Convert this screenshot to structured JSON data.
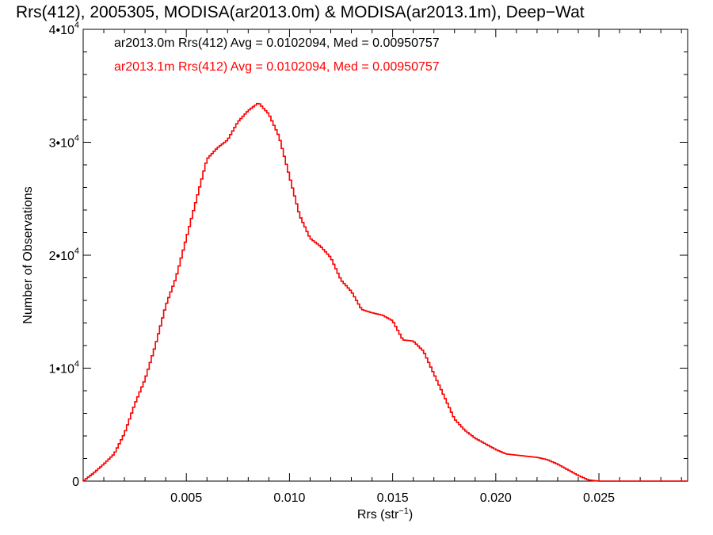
{
  "chart_data": {
    "type": "histogram",
    "title": "Rrs(412), 2005305, MODISA(ar2013.0m) & MODISA(ar2013.1m), Deep−Wat",
    "xlabel": "Rrs (str",
    "xlabel_sup": "−1",
    "xlabel_close": ")",
    "ylabel": "Number of Observations",
    "xlim": [
      0.0,
      0.0293
    ],
    "ylim": [
      0,
      40000
    ],
    "x_ticks": [
      0.005,
      0.01,
      0.015,
      0.02,
      0.025
    ],
    "x_tick_labels": [
      "0.005",
      "0.010",
      "0.015",
      "0.020",
      "0.025"
    ],
    "y_ticks": [
      0,
      10000,
      20000,
      30000,
      40000
    ],
    "y_tick_labels": [
      {
        "mant": "0",
        "sup": ""
      },
      {
        "mant": "1•10",
        "sup": "4"
      },
      {
        "mant": "2•10",
        "sup": "4"
      },
      {
        "mant": "3•10",
        "sup": "4"
      },
      {
        "mant": "4•10",
        "sup": "4"
      }
    ],
    "grid": false,
    "legend_position": "top-left",
    "annotations": [
      {
        "text": "ar2013.0m Rrs(412) Avg = 0.0102094, Med = 0.00950757",
        "color": "#000000"
      },
      {
        "text": "ar2013.1m Rrs(412) Avg = 0.0102094, Med = 0.00950757",
        "color": "#ff0000"
      }
    ],
    "series": [
      {
        "name": "ar2013.0m",
        "color": "#000000",
        "points": [
          [
            0.0,
            0
          ],
          [
            0.0005,
            700
          ],
          [
            0.001,
            1500
          ],
          [
            0.0015,
            2400
          ],
          [
            0.002,
            4200
          ],
          [
            0.0025,
            6800
          ],
          [
            0.003,
            9000
          ],
          [
            0.0035,
            12000
          ],
          [
            0.004,
            15500
          ],
          [
            0.0045,
            18000
          ],
          [
            0.005,
            21500
          ],
          [
            0.0055,
            25000
          ],
          [
            0.006,
            28500
          ],
          [
            0.0065,
            29500
          ],
          [
            0.007,
            30200
          ],
          [
            0.0075,
            31800
          ],
          [
            0.008,
            32800
          ],
          [
            0.0085,
            33500
          ],
          [
            0.009,
            32500
          ],
          [
            0.0095,
            30500
          ],
          [
            0.01,
            27000
          ],
          [
            0.0105,
            23500
          ],
          [
            0.011,
            21500
          ],
          [
            0.0115,
            20800
          ],
          [
            0.012,
            19800
          ],
          [
            0.0125,
            17800
          ],
          [
            0.013,
            16800
          ],
          [
            0.0135,
            15200
          ],
          [
            0.014,
            14900
          ],
          [
            0.0145,
            14700
          ],
          [
            0.015,
            14200
          ],
          [
            0.0155,
            12500
          ],
          [
            0.016,
            12400
          ],
          [
            0.0165,
            11500
          ],
          [
            0.017,
            9500
          ],
          [
            0.0175,
            7500
          ],
          [
            0.018,
            5500
          ],
          [
            0.0185,
            4500
          ],
          [
            0.019,
            3800
          ],
          [
            0.0195,
            3300
          ],
          [
            0.02,
            2800
          ],
          [
            0.0205,
            2400
          ],
          [
            0.021,
            2300
          ],
          [
            0.0215,
            2200
          ],
          [
            0.022,
            2100
          ],
          [
            0.0225,
            1900
          ],
          [
            0.023,
            1500
          ],
          [
            0.0235,
            1000
          ],
          [
            0.024,
            500
          ],
          [
            0.0245,
            100
          ],
          [
            0.025,
            0
          ],
          [
            0.0293,
            0
          ]
        ]
      },
      {
        "name": "ar2013.1m",
        "color": "#ff0000",
        "points": [
          [
            0.0,
            0
          ],
          [
            0.0005,
            700
          ],
          [
            0.001,
            1500
          ],
          [
            0.0015,
            2400
          ],
          [
            0.002,
            4200
          ],
          [
            0.0025,
            6800
          ],
          [
            0.003,
            9000
          ],
          [
            0.0035,
            12000
          ],
          [
            0.004,
            15500
          ],
          [
            0.0045,
            18000
          ],
          [
            0.005,
            21500
          ],
          [
            0.0055,
            25000
          ],
          [
            0.006,
            28500
          ],
          [
            0.0065,
            29500
          ],
          [
            0.007,
            30200
          ],
          [
            0.0075,
            31800
          ],
          [
            0.008,
            32800
          ],
          [
            0.0085,
            33500
          ],
          [
            0.009,
            32500
          ],
          [
            0.0095,
            30500
          ],
          [
            0.01,
            27000
          ],
          [
            0.0105,
            23500
          ],
          [
            0.011,
            21500
          ],
          [
            0.0115,
            20800
          ],
          [
            0.012,
            19800
          ],
          [
            0.0125,
            17800
          ],
          [
            0.013,
            16800
          ],
          [
            0.0135,
            15200
          ],
          [
            0.014,
            14900
          ],
          [
            0.0145,
            14700
          ],
          [
            0.015,
            14200
          ],
          [
            0.0155,
            12500
          ],
          [
            0.016,
            12400
          ],
          [
            0.0165,
            11500
          ],
          [
            0.017,
            9500
          ],
          [
            0.0175,
            7500
          ],
          [
            0.018,
            5500
          ],
          [
            0.0185,
            4500
          ],
          [
            0.019,
            3800
          ],
          [
            0.0195,
            3300
          ],
          [
            0.02,
            2800
          ],
          [
            0.0205,
            2400
          ],
          [
            0.021,
            2300
          ],
          [
            0.0215,
            2200
          ],
          [
            0.022,
            2100
          ],
          [
            0.0225,
            1900
          ],
          [
            0.023,
            1500
          ],
          [
            0.0235,
            1000
          ],
          [
            0.024,
            500
          ],
          [
            0.0245,
            100
          ],
          [
            0.025,
            0
          ],
          [
            0.0293,
            0
          ]
        ]
      }
    ]
  }
}
